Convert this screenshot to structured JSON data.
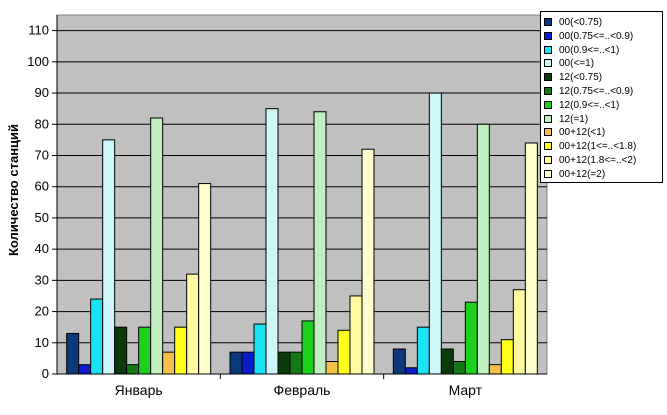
{
  "chart_data": {
    "type": "bar",
    "ylabel": "Количество станций",
    "ylim": [
      0,
      115
    ],
    "yticks": [
      0,
      10,
      20,
      30,
      40,
      50,
      60,
      70,
      80,
      90,
      100,
      110
    ],
    "categories": [
      "Январь",
      "Февраль",
      "Март"
    ],
    "series": [
      {
        "name": "00(<0.75)",
        "color": "#0b3a7a",
        "values": [
          13,
          7,
          8
        ]
      },
      {
        "name": "00(0.75<=..<0.9)",
        "color": "#0a1cc8",
        "values": [
          3,
          7,
          2
        ]
      },
      {
        "name": "00(0.9<=..<1)",
        "color": "#19e3f2",
        "values": [
          24,
          16,
          15
        ]
      },
      {
        "name": "00(<=1)",
        "color": "#ccf7f8",
        "values": [
          75,
          85,
          90
        ]
      },
      {
        "name": "12(<0.75)",
        "color": "#0b3b0b",
        "values": [
          15,
          7,
          8
        ]
      },
      {
        "name": "12(0.75<=..<0.9)",
        "color": "#157a15",
        "values": [
          3,
          7,
          4
        ]
      },
      {
        "name": "12(0.9<=..<1)",
        "color": "#1ed11e",
        "values": [
          15,
          17,
          23
        ]
      },
      {
        "name": "12(=1)",
        "color": "#bff0bf",
        "values": [
          82,
          84,
          80
        ]
      },
      {
        "name": "00+12(<1)",
        "color": "#f5c04a",
        "values": [
          7,
          4,
          3
        ]
      },
      {
        "name": "00+12(1<=..<1.8)",
        "color": "#ffff1a",
        "values": [
          15,
          14,
          11
        ]
      },
      {
        "name": "00+12(1.8<=..<2)",
        "color": "#fffaa0",
        "values": [
          32,
          25,
          27
        ]
      },
      {
        "name": "00+12(=2)",
        "color": "#ffffcc",
        "values": [
          61,
          72,
          74
        ]
      }
    ],
    "plot_background": "#c0c0c0",
    "grid": true,
    "legend_position": "right"
  }
}
